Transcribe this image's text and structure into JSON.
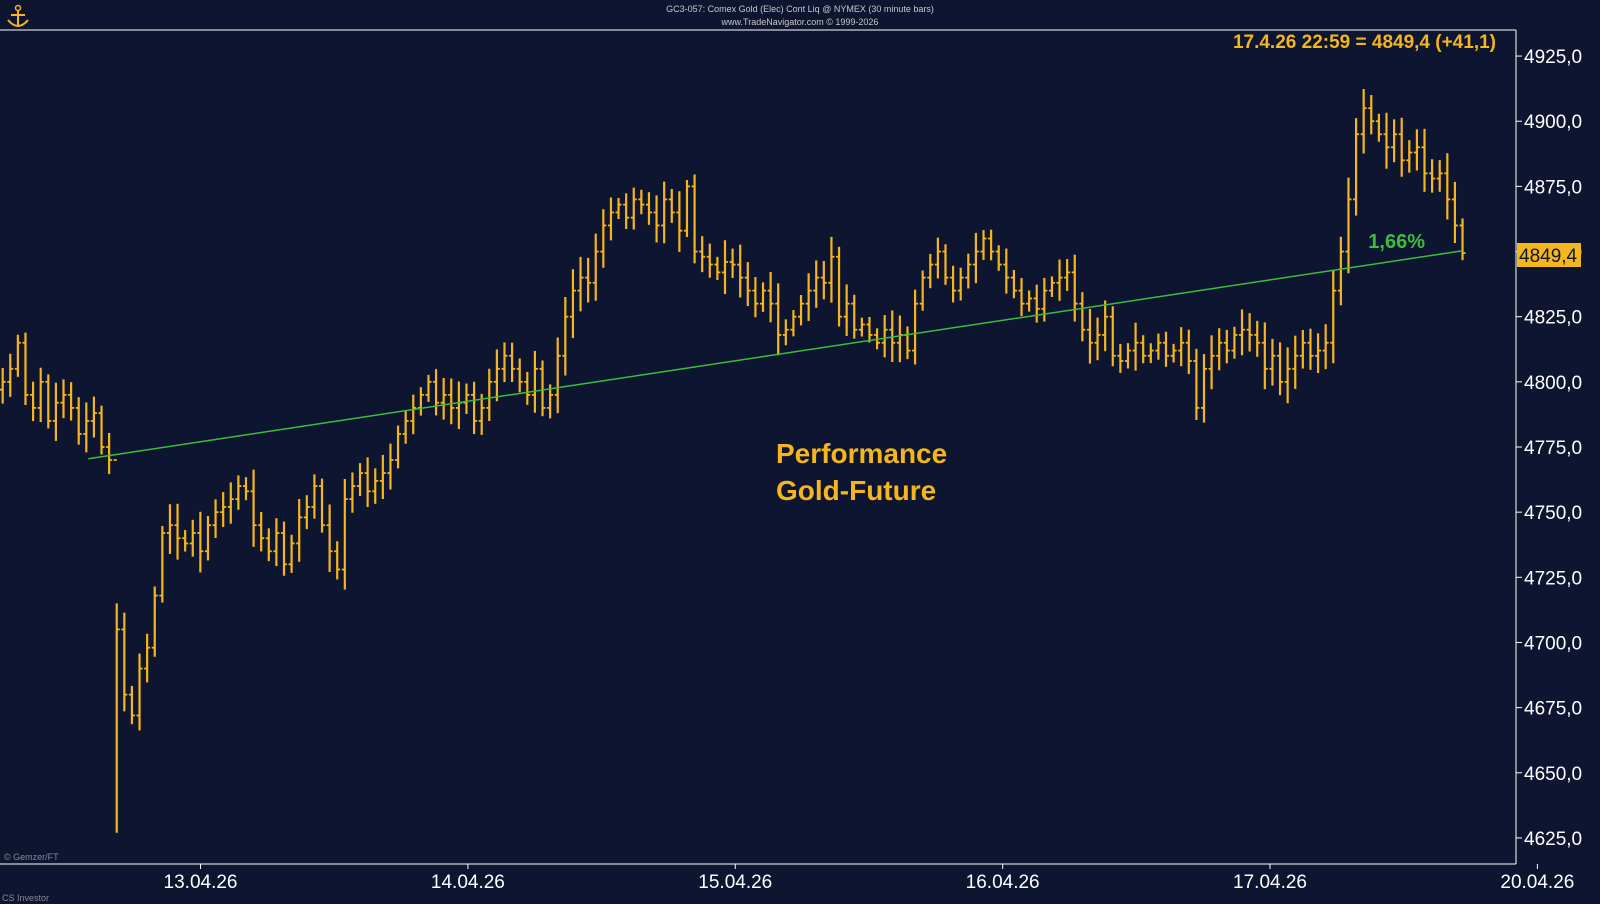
{
  "header": {
    "line1": "GC3-057: Comex Gold (Elec) Cont Liq @ NYMEX (30 minute bars)",
    "line2": "www.TradeNavigator.com © 1999-2026"
  },
  "quote_readout": "17.4.26 22:59 = 4849,4 (+41,1)",
  "last_price_label": "4849,4",
  "performance_label": "1,66%",
  "annotation": {
    "line1": "Performance",
    "line2": "Gold-Future"
  },
  "watermark": "© Gemzer/FT",
  "footer": "CS Investor",
  "colors": {
    "background": "#0d1530",
    "bars": "#f5b51c",
    "trend": "#3dbd3d",
    "text": "#ffffff"
  },
  "chart_data": {
    "type": "bar",
    "subtype": "ohlc",
    "title": "",
    "xlabel": "",
    "ylabel": "",
    "ylim": [
      4615,
      4935
    ],
    "y_ticks": [
      "4925,0",
      "4900,0",
      "4875,0",
      "4850,0",
      "4825,0",
      "4800,0",
      "4775,0",
      "4750,0",
      "4725,0",
      "4700,0",
      "4675,0",
      "4650,0",
      "4625,0"
    ],
    "x_ticks": [
      "13.04.26",
      "14.04.26",
      "15.04.26",
      "16.04.26",
      "17.04.26",
      "20.04.26"
    ],
    "x_tick_positions": [
      0.5,
      1.5,
      2.5,
      3.5,
      4.5,
      5.5
    ],
    "xlim": [
      -0.25,
      5.42
    ],
    "series": [
      {
        "closes": [
          4800,
          4805,
          4815,
          4795,
          4790,
          4800,
          4785,
          4792,
          4795,
          4790,
          4780,
          4785,
          4788,
          4775,
          4770,
          4705,
          4680,
          4672,
          4690,
          4698,
          4718,
          4742,
          4745,
          4740,
          4738,
          4742,
          4735,
          4745,
          4750,
          4752,
          4755,
          4760,
          4758,
          4745,
          4740,
          4735,
          4742,
          4730,
          4738,
          4748,
          4752,
          4760,
          4745,
          4735,
          4728,
          4755,
          4760,
          4765,
          4758,
          4762,
          4765,
          4770,
          4780,
          4785,
          4790,
          4795,
          4800,
          4792,
          4795,
          4790,
          4792,
          4795,
          4785,
          4790,
          4800,
          4805,
          4810,
          4805,
          4800,
          4795,
          4805,
          4790,
          4795,
          4810,
          4825,
          4835,
          4840,
          4838,
          4850,
          4860,
          4865,
          4868,
          4863,
          4870,
          4868,
          4865,
          4860,
          4870,
          4865,
          4858,
          4875,
          4850,
          4848,
          4845,
          4842,
          4846,
          4845,
          4840,
          4835,
          4830,
          4835,
          4830,
          4818,
          4820,
          4825,
          4830,
          4835,
          4840,
          4838,
          4848,
          4825,
          4830,
          4820,
          4822,
          4818,
          4815,
          4820,
          4815,
          4818,
          4812,
          4830,
          4840,
          4845,
          4850,
          4840,
          4835,
          4840,
          4845,
          4850,
          4855,
          4850,
          4845,
          4840,
          4835,
          4830,
          4832,
          4828,
          4835,
          4838,
          4840,
          4842,
          4830,
          4820,
          4815,
          4818,
          4825,
          4810,
          4808,
          4812,
          4815,
          4810,
          4812,
          4815,
          4810,
          4812,
          4815,
          4808,
          4790,
          4805,
          4810,
          4815,
          4812,
          4818,
          4820,
          4818,
          4815,
          4805,
          4810,
          4800,
          4805,
          4810,
          4815,
          4810,
          4812,
          4815,
          4835,
          4850,
          4870,
          4895,
          4905,
          4900,
          4895,
          4890,
          4895,
          4885,
          4888,
          4890,
          4880,
          4878,
          4880,
          4870,
          4860,
          4849.4
        ]
      },
      {
        "name": "",
        "points": [
          [
            0.08,
            4770.5
          ],
          [
            5.22,
            4850.3
          ]
        ]
      }
    ]
  }
}
